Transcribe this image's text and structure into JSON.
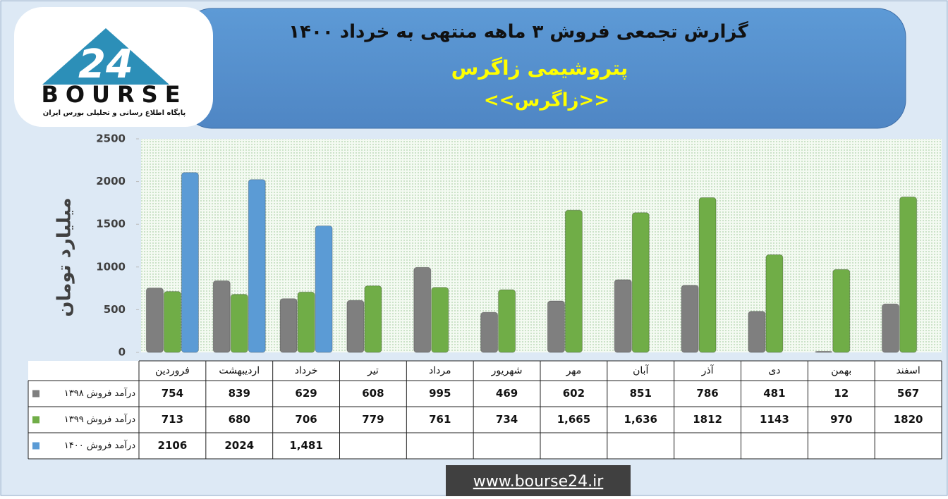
{
  "logo": {
    "mark": "24",
    "name": "BOURSE",
    "tagline": "پایگاه اطلاع رسانی و تحلیلی بورس ایران"
  },
  "footer": "www.bourse24.ir",
  "chart_data": {
    "type": "bar",
    "title": "گزارش تجمعی فروش ۳ ماهه منتهی به خرداد ۱۴۰۰",
    "subtitle": "پتروشیمی زاگرس",
    "symbol": "<<زاگرس>>",
    "y_label": "میلیارد تومان",
    "categories": [
      "فروردین",
      "اردیبهشت",
      "خرداد",
      "تیر",
      "مرداد",
      "شهریور",
      "مهر",
      "آبان",
      "آذر",
      "دی",
      "بهمن",
      "اسفند"
    ],
    "series": [
      {
        "name": "درآمد فروش ۱۳۹۸",
        "color": "#7f7f7f",
        "values": [
          754,
          839,
          629,
          608,
          995,
          469,
          602,
          851,
          786,
          481,
          12,
          567
        ],
        "value_labels": [
          "754",
          "839",
          "629",
          "608",
          "995",
          "469",
          "602",
          "851",
          "786",
          "481",
          "12",
          "567"
        ]
      },
      {
        "name": "درآمد فروش ۱۳۹۹",
        "color": "#70ad47",
        "values": [
          713,
          680,
          706,
          779,
          761,
          734,
          1665,
          1636,
          1812,
          1143,
          970,
          1820
        ],
        "value_labels": [
          "713",
          "680",
          "706",
          "779",
          "761",
          "734",
          "1,665",
          "1,636",
          "1812",
          "1143",
          "970",
          "1820"
        ]
      },
      {
        "name": "درآمد فروش ۱۴۰۰",
        "color": "#5b9bd5",
        "values": [
          2106,
          2024,
          1481,
          null,
          null,
          null,
          null,
          null,
          null,
          null,
          null,
          null
        ],
        "value_labels": [
          "2106",
          "2024",
          "1,481",
          null,
          null,
          null,
          null,
          null,
          null,
          null,
          null,
          null
        ]
      }
    ],
    "ylim": [
      0,
      2500
    ],
    "yticks": [
      0,
      500,
      1000,
      1500,
      2000,
      2500
    ],
    "grid": false
  }
}
